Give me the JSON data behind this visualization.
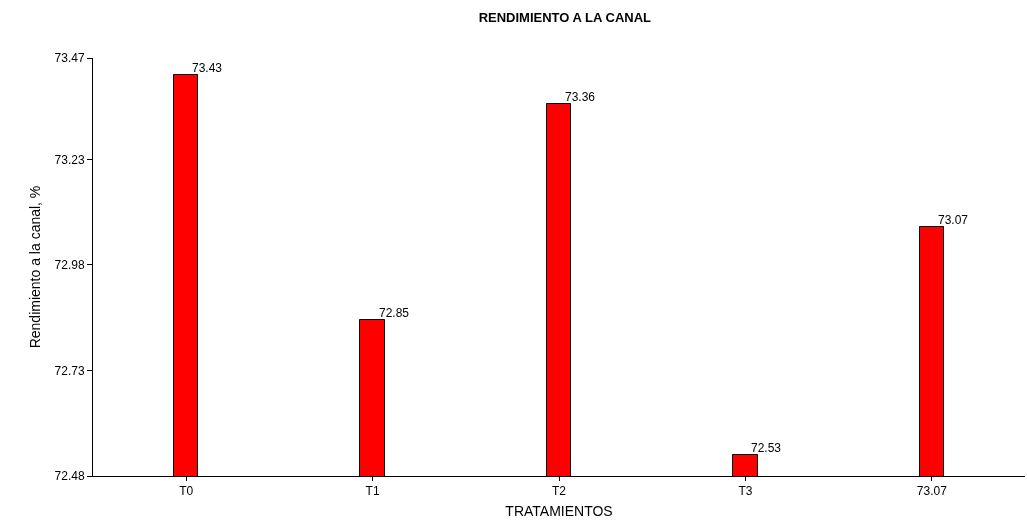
{
  "chart_data": {
    "type": "bar",
    "title": "RENDIMIENTO A LA CANAL",
    "xlabel": "TRATAMIENTOS",
    "ylabel": "Rendimiento a la canal, %",
    "categories": [
      "T0",
      "T1",
      "T2",
      "T3",
      "73.07"
    ],
    "values": [
      73.43,
      72.85,
      73.36,
      72.53,
      73.07
    ],
    "color": "#ff0000",
    "ylim": [
      72.48,
      73.47
    ],
    "yticks": [
      72.48,
      72.73,
      72.98,
      73.23,
      73.47
    ],
    "data_labels": true,
    "grid": false,
    "legend": false
  }
}
